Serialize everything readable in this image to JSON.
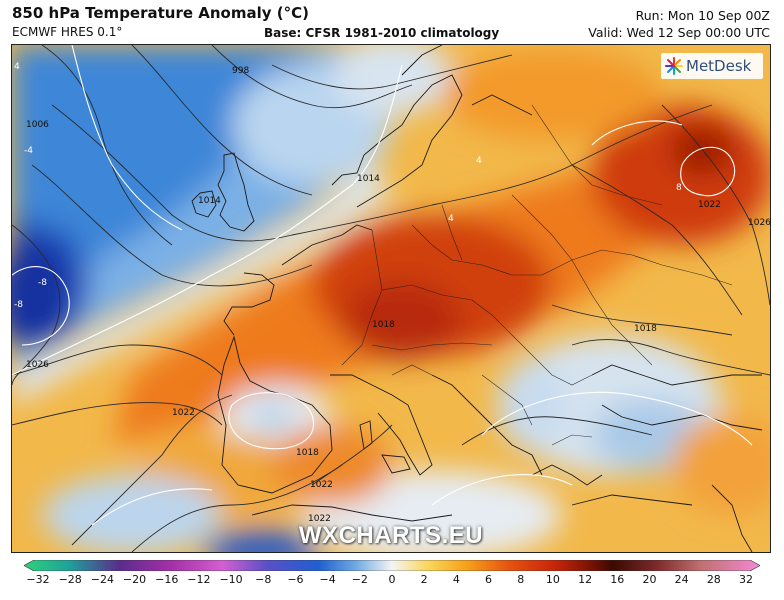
{
  "header": {
    "title": "850 hPa Temperature Anomaly (°C)",
    "model": "ECMWF HRES 0.1°",
    "base": "Base: CFSR 1981-2010 climatology",
    "run": "Run: Mon 10 Sep 00Z",
    "valid": "Valid: Wed 12 Sep 00:00 UTC"
  },
  "logo": {
    "text": "MetDesk",
    "icon": "metdesk-star-icon"
  },
  "watermark": "WXCHARTS.EU",
  "map": {
    "isobar_labels": [
      "998",
      "1006",
      "1014",
      "1014",
      "1022",
      "1026",
      "1026",
      "1018",
      "1018",
      "1022",
      "1022",
      "1018",
      "1022"
    ],
    "anomaly_labels": [
      "4",
      "-4",
      "-8",
      "-8",
      "4",
      "8",
      "4"
    ]
  },
  "colorbar": {
    "ticks": [
      "−32",
      "−28",
      "−24",
      "−20",
      "−16",
      "−12",
      "−10",
      "−8",
      "−6",
      "−4",
      "−2",
      "0",
      "2",
      "4",
      "6",
      "8",
      "10",
      "12",
      "16",
      "20",
      "24",
      "28",
      "32"
    ],
    "colors": {
      "cold_end": "#2fd17a",
      "deep_cold": "#6a2bb0",
      "blue": "#1f5fd0",
      "neutral": "#f4f4f4",
      "warm": "#f7a21b",
      "hot": "#c8260a",
      "warm_end": "#f48ad4"
    }
  }
}
